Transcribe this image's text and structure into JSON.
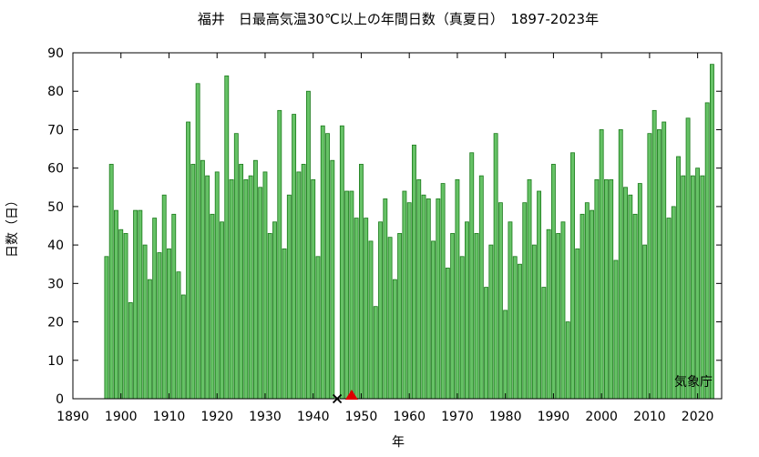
{
  "chart_data": {
    "type": "bar",
    "title": "福井　日最高気温30℃以上の年間日数（真夏日）　1897-2023年",
    "xlabel": "年",
    "ylabel": "日数（日）",
    "source": "気象庁",
    "xlim": [
      1890,
      2025
    ],
    "ylim": [
      0,
      90
    ],
    "x_ticks": [
      1890,
      1900,
      1910,
      1920,
      1930,
      1940,
      1950,
      1960,
      1970,
      1980,
      1990,
      2000,
      2010,
      2020
    ],
    "y_ticks": [
      0,
      10,
      20,
      30,
      40,
      50,
      60,
      70,
      80,
      90
    ],
    "grid": false,
    "bar_color": "#66c266",
    "bar_edge_color": "#1a7a1a",
    "markers": [
      {
        "year": 1945,
        "symbol": "cross",
        "color": "#000000"
      },
      {
        "year": 1948,
        "symbol": "triangle",
        "color": "#dd0000"
      }
    ],
    "x": [
      1897,
      1898,
      1899,
      1900,
      1901,
      1902,
      1903,
      1904,
      1905,
      1906,
      1907,
      1908,
      1909,
      1910,
      1911,
      1912,
      1913,
      1914,
      1915,
      1916,
      1917,
      1918,
      1919,
      1920,
      1921,
      1922,
      1923,
      1924,
      1925,
      1926,
      1927,
      1928,
      1929,
      1930,
      1931,
      1932,
      1933,
      1934,
      1935,
      1936,
      1937,
      1938,
      1939,
      1940,
      1941,
      1942,
      1943,
      1944,
      1945,
      1946,
      1947,
      1948,
      1949,
      1950,
      1951,
      1952,
      1953,
      1954,
      1955,
      1956,
      1957,
      1958,
      1959,
      1960,
      1961,
      1962,
      1963,
      1964,
      1965,
      1966,
      1967,
      1968,
      1969,
      1970,
      1971,
      1972,
      1973,
      1974,
      1975,
      1976,
      1977,
      1978,
      1979,
      1980,
      1981,
      1982,
      1983,
      1984,
      1985,
      1986,
      1987,
      1988,
      1989,
      1990,
      1991,
      1992,
      1993,
      1994,
      1995,
      1996,
      1997,
      1998,
      1999,
      2000,
      2001,
      2002,
      2003,
      2004,
      2005,
      2006,
      2007,
      2008,
      2009,
      2010,
      2011,
      2012,
      2013,
      2014,
      2015,
      2016,
      2017,
      2018,
      2019,
      2020,
      2021,
      2022,
      2023
    ],
    "values": [
      37,
      61,
      49,
      44,
      43,
      25,
      49,
      49,
      40,
      31,
      47,
      38,
      53,
      39,
      48,
      33,
      27,
      72,
      61,
      82,
      62,
      58,
      48,
      59,
      46,
      84,
      57,
      69,
      61,
      57,
      58,
      62,
      55,
      59,
      43,
      46,
      75,
      39,
      53,
      74,
      59,
      61,
      80,
      57,
      37,
      71,
      69,
      62,
      null,
      71,
      54,
      54,
      47,
      61,
      47,
      41,
      24,
      46,
      52,
      42,
      31,
      43,
      54,
      51,
      66,
      57,
      53,
      52,
      41,
      52,
      56,
      34,
      43,
      57,
      37,
      46,
      64,
      43,
      58,
      29,
      40,
      69,
      51,
      23,
      46,
      37,
      35,
      51,
      57,
      40,
      54,
      29,
      44,
      61,
      43,
      46,
      20,
      64,
      39,
      48,
      51,
      49,
      57,
      70,
      57,
      57,
      36,
      70,
      55,
      53,
      48,
      56,
      40,
      69,
      75,
      70,
      72,
      47,
      50,
      63,
      58,
      73,
      58,
      60,
      58,
      77,
      87
    ]
  }
}
